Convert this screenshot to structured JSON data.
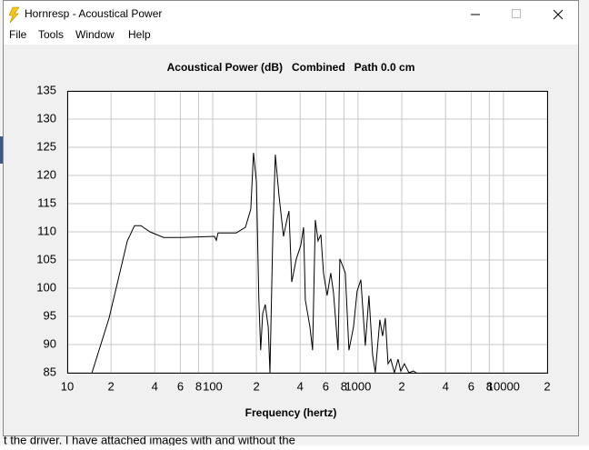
{
  "window": {
    "title": "Hornresp - Acoustical Power",
    "menu": [
      "File",
      "Tools",
      "Window",
      "Help"
    ]
  },
  "background_text": "t the driver. I have attached images with and without the",
  "chart_data": {
    "type": "line",
    "title": "Acoustical Power (dB)   Combined   Path 0.0 cm",
    "xlabel": "Frequency (hertz)",
    "xscale": "log",
    "grid": true,
    "color": "#000000",
    "xlim": [
      10,
      20000
    ],
    "ylim": [
      85,
      135
    ],
    "xticks": [
      10,
      {
        "value": 20,
        "label": "2"
      },
      {
        "value": 40,
        "label": "4"
      },
      {
        "value": 60,
        "label": "6"
      },
      {
        "value": 80,
        "label": "8"
      },
      100,
      {
        "value": 200,
        "label": "2"
      },
      {
        "value": 400,
        "label": "4"
      },
      {
        "value": 600,
        "label": "6"
      },
      {
        "value": 800,
        "label": "8"
      },
      1000,
      {
        "value": 2000,
        "label": "2"
      },
      {
        "value": 4000,
        "label": "4"
      },
      {
        "value": 6000,
        "label": "6"
      },
      {
        "value": 8000,
        "label": "8"
      },
      10000,
      {
        "value": 20000,
        "label": "2"
      }
    ],
    "yticks": [
      85,
      90,
      95,
      100,
      105,
      110,
      115,
      120,
      125,
      130,
      135
    ],
    "x": [
      14.8,
      19.4,
      25.9,
      29.0,
      32.1,
      37.0,
      46.0,
      61.3,
      103,
      106,
      109,
      145,
      168,
      183,
      191,
      200,
      208,
      214,
      221,
      230,
      241,
      248,
      259,
      270,
      286,
      307,
      326,
      335,
      350,
      376,
      404,
      422,
      434,
      467,
      487,
      508,
      531,
      555,
      579,
      613,
      649,
      678,
      729,
      750,
      783,
      818,
      866,
      931,
      986,
      1045,
      1122,
      1189,
      1259,
      1315,
      1413,
      1476,
      1540,
      1607,
      1679,
      1778,
      1884,
      1967,
      2084,
      2239,
      2404,
      2512
    ],
    "values": [
      85,
      94.7,
      108.4,
      111.1,
      111.1,
      110.0,
      109.0,
      109.0,
      109.2,
      108.5,
      109.8,
      109.8,
      110.8,
      114.0,
      124.0,
      118.9,
      97.9,
      89.0,
      95.5,
      97.1,
      93.1,
      85,
      109.2,
      123.7,
      116.5,
      109.2,
      112.4,
      113.7,
      101.1,
      105.2,
      107.6,
      110.8,
      97.9,
      93.1,
      89.0,
      112.1,
      108.4,
      109.5,
      102.7,
      98.7,
      102.7,
      99.2,
      89.0,
      105.2,
      104.0,
      102.7,
      89.0,
      93.1,
      99.5,
      101.5,
      89.8,
      98.7,
      88.2,
      85,
      94.4,
      91.5,
      94.7,
      86.6,
      87.4,
      85,
      87.4,
      85.3,
      86.6,
      85,
      85.3,
      85
    ]
  }
}
